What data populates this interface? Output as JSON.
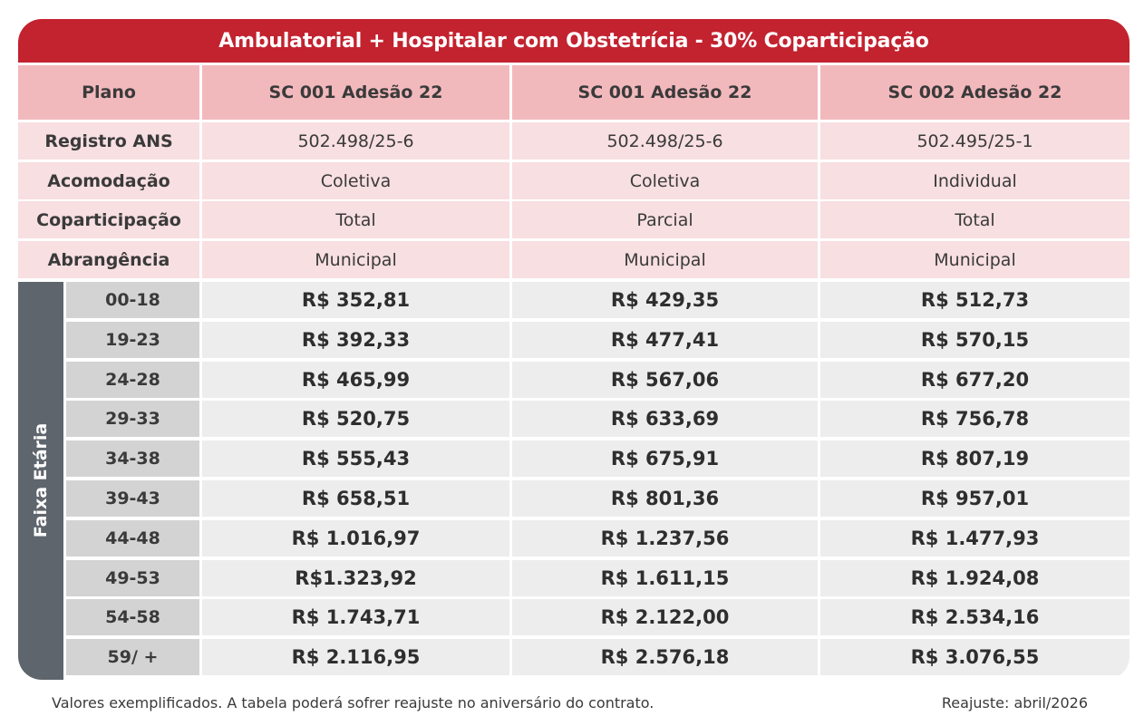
{
  "title": "Ambulatorial + Hospitalar com Obstetrícia - 30% Coparticipação",
  "header": {
    "row_label": "Plano",
    "plans": [
      "SC 001 Adesão 22",
      "SC 001 Adesão 22",
      "SC 002 Adesão 22"
    ]
  },
  "info_rows": [
    {
      "label": "Registro ANS",
      "values": [
        "502.498/25-6",
        "502.498/25-6",
        "502.495/25-1"
      ]
    },
    {
      "label": "Acomodação",
      "values": [
        "Coletiva",
        "Coletiva",
        "Individual"
      ]
    },
    {
      "label": "Coparticipação",
      "values": [
        "Total",
        "Parcial",
        "Total"
      ]
    },
    {
      "label": "Abrangência",
      "values": [
        "Municipal",
        "Municipal",
        "Municipal"
      ]
    }
  ],
  "age_section_label": "Faixa Etária",
  "age_rows": [
    {
      "age": "00-18",
      "prices": [
        "R$ 352,81",
        "R$ 429,35",
        "R$ 512,73"
      ]
    },
    {
      "age": "19-23",
      "prices": [
        "R$ 392,33",
        "R$ 477,41",
        "R$ 570,15"
      ]
    },
    {
      "age": "24-28",
      "prices": [
        "R$ 465,99",
        "R$ 567,06",
        "R$ 677,20"
      ]
    },
    {
      "age": "29-33",
      "prices": [
        "R$ 520,75",
        "R$ 633,69",
        "R$ 756,78"
      ]
    },
    {
      "age": "34-38",
      "prices": [
        "R$ 555,43",
        "R$ 675,91",
        "R$ 807,19"
      ]
    },
    {
      "age": "39-43",
      "prices": [
        "R$ 658,51",
        "R$ 801,36",
        "R$ 957,01"
      ]
    },
    {
      "age": "44-48",
      "prices": [
        "R$ 1.016,97",
        "R$ 1.237,56",
        "R$ 1.477,93"
      ]
    },
    {
      "age": "49-53",
      "prices": [
        "R$1.323,92",
        "R$ 1.611,15",
        "R$ 1.924,08"
      ]
    },
    {
      "age": "54-58",
      "prices": [
        "R$ 1.743,71",
        "R$ 2.122,00",
        "R$ 2.534,16"
      ]
    },
    {
      "age": "59/ +",
      "prices": [
        "R$ 2.116,95",
        "R$ 2.576,18",
        "R$ 3.076,55"
      ]
    }
  ],
  "footer": {
    "note": "Valores exemplificados. A tabela poderá sofrer reajuste no aniversário do contrato.",
    "reajuste": "Reajuste: abril/2026"
  },
  "colors": {
    "title_bar": "#c3222f",
    "header_bg": "#f2b9bd",
    "info_bg": "#f8dfe1",
    "side_bg": "#5f656c",
    "age_bg": "#d3d3d3",
    "price_bg": "#ededed"
  }
}
